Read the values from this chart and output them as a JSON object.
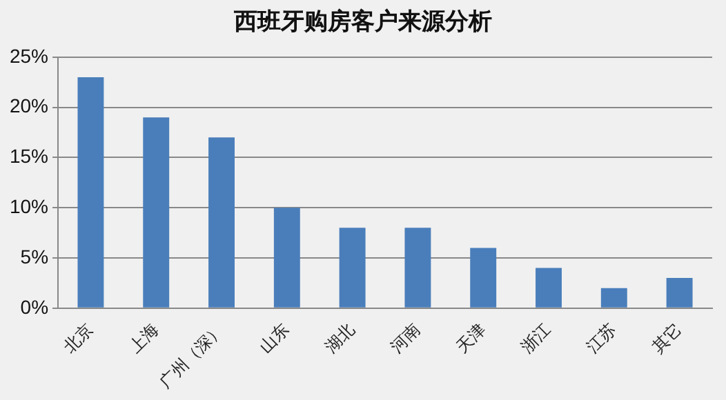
{
  "chart_data": {
    "type": "bar",
    "title": "西班牙购房客户来源分析",
    "categories": [
      "北京",
      "上海",
      "广州（深）",
      "山东",
      "湖北",
      "河南",
      "天津",
      "浙江",
      "江苏",
      "其它"
    ],
    "values": [
      23,
      19,
      17,
      10,
      8,
      8,
      6,
      4,
      2,
      3
    ],
    "color": "#4a7ebb",
    "ylim": [
      0,
      25
    ],
    "yticks": [
      {
        "value": 0,
        "label": "0%"
      },
      {
        "value": 5,
        "label": "5%"
      },
      {
        "value": 10,
        "label": "10%"
      },
      {
        "value": 15,
        "label": "15%"
      },
      {
        "value": 20,
        "label": "20%"
      },
      {
        "value": 25,
        "label": "25%"
      }
    ],
    "grid": "y",
    "legend": false
  }
}
